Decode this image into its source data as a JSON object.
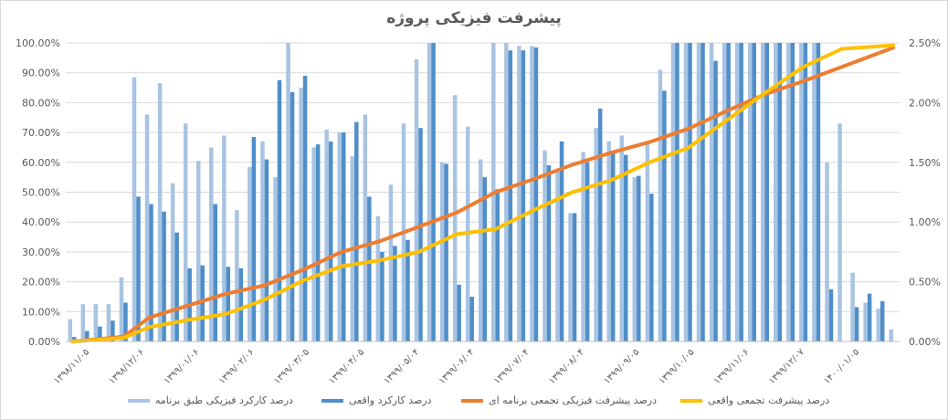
{
  "chart_data": {
    "type": "bar",
    "title": "پیشرفت فیزیکی پروژه",
    "y_left": {
      "ylim": [
        0,
        100
      ],
      "tick_labels": [
        "0.00%",
        "10.00%",
        "20.00%",
        "30.00%",
        "40.00%",
        "50.00%",
        "60.00%",
        "70.00%",
        "80.00%",
        "90.00%",
        "100.00%"
      ]
    },
    "y_right": {
      "ylim": [
        0,
        2.5
      ],
      "tick_labels": [
        "0.00%",
        "0.50%",
        "1.00%",
        "1.50%",
        "2.00%",
        "2.50%"
      ]
    },
    "x_tick_labels": [
      "۱۳۹۸/۱۱/۰۵",
      "۱۳۹۸/۱۲/۰۶",
      "۱۳۹۹/۰۱/۰۶",
      "۱۳۹۹/۰۲/۰۶",
      "۱۳۹۹/۰۳/۰۵",
      "۱۳۹۹/۰۴/۰۵",
      "۱۳۹۹/۰۵/۰۴",
      "۱۳۹۹/۰۶/۰۴",
      "۱۳۹۹/۰۷/۰۴",
      "۱۳۹۹/۰۸/۰۴",
      "۱۳۹۹/۰۹/۰۵",
      "۱۳۹۹/۱۰/۰۵",
      "۱۳۹۹/۱۱/۰۶",
      "۱۳۹۹/۱۲/۰۷",
      "۱۴۰۰/۰۱/۰۵"
    ],
    "grid": true,
    "legend_position": "bottom",
    "series": [
      {
        "name": "درصد کارکرد فیزیکی طبق برنامه",
        "kind": "bar",
        "axis": "left",
        "color": "#a9c4e2",
        "values": [
          7.5,
          12.5,
          12.5,
          12.5,
          21.5,
          88.5,
          76,
          86.5,
          53,
          73,
          60.5,
          65,
          69,
          44,
          58.5,
          67,
          55,
          100,
          85,
          65,
          71,
          70,
          62,
          76,
          42,
          52.5,
          73,
          94.5,
          100,
          60,
          82.5,
          72,
          61,
          100,
          100,
          99,
          99,
          64,
          57,
          43,
          63.5,
          71.5,
          67,
          69,
          55,
          66.5,
          91,
          100,
          100,
          100,
          100,
          100,
          100,
          100,
          100,
          100,
          100,
          100,
          100,
          60,
          73,
          23,
          13,
          11,
          4
        ]
      },
      {
        "name": "درصد کارکرد واقعی",
        "kind": "bar",
        "axis": "left",
        "color": "#4f8ec9",
        "values": [
          1.5,
          3.5,
          5,
          7,
          13,
          48.5,
          46,
          43.5,
          36.5,
          24.5,
          25.5,
          46,
          25,
          24.5,
          68.5,
          61,
          87.5,
          83.5,
          89,
          66,
          67,
          70,
          73.5,
          48.5,
          30,
          32,
          34,
          71.5,
          100,
          59.5,
          19,
          15,
          55,
          51,
          97.5,
          97.5,
          98.5,
          59,
          67,
          43,
          60,
          78,
          63,
          62.5,
          55.5,
          49.5,
          84,
          100,
          100,
          100,
          94,
          100,
          100,
          100,
          100,
          100,
          100,
          100,
          100,
          17.5,
          0,
          11.5,
          16,
          13.5,
          0
        ]
      },
      {
        "name": "درصد پیشرفت فیزیکی تجمعی برنامه ای",
        "kind": "line",
        "axis": "right",
        "color": "#ed7d31",
        "x": [
          0,
          4,
          6,
          9,
          12,
          15,
          18,
          21,
          24,
          27,
          30,
          33,
          36,
          39,
          42,
          45,
          48,
          51,
          54,
          57,
          60,
          64
        ],
        "values": [
          0,
          0.04,
          0.2,
          0.3,
          0.4,
          0.47,
          0.6,
          0.75,
          0.84,
          0.96,
          1.08,
          1.25,
          1.36,
          1.48,
          1.58,
          1.67,
          1.78,
          1.93,
          2.07,
          2.18,
          2.3,
          2.46
        ]
      },
      {
        "name": "درصد پیشرفت تجمعی واقعی",
        "kind": "line",
        "axis": "right",
        "color": "#ffc000",
        "x": [
          0,
          4,
          6,
          9,
          12,
          15,
          18,
          21,
          24,
          27,
          30,
          33,
          36,
          39,
          42,
          45,
          48,
          51,
          54,
          57,
          60,
          64
        ],
        "values": [
          0,
          0.03,
          0.12,
          0.18,
          0.23,
          0.35,
          0.51,
          0.63,
          0.68,
          0.75,
          0.9,
          0.94,
          1.1,
          1.25,
          1.35,
          1.5,
          1.62,
          1.85,
          2.08,
          2.3,
          2.45,
          2.48
        ]
      }
    ]
  }
}
